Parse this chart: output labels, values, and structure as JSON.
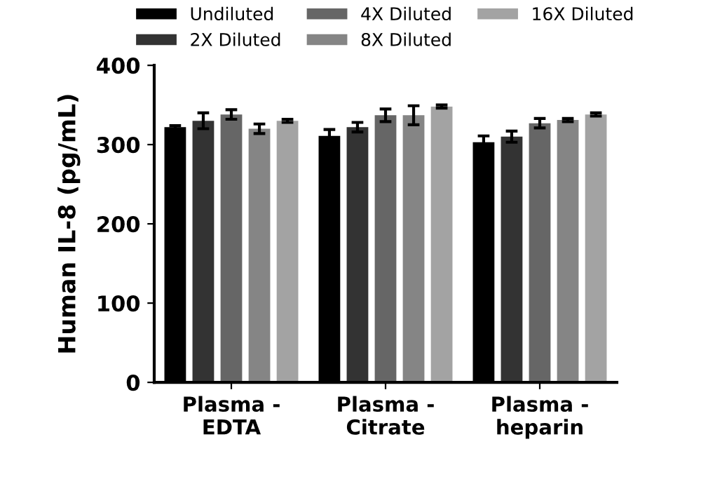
{
  "chart_data": {
    "type": "bar",
    "ylabel": "Human IL-8 (pg/mL)",
    "categories": [
      "Plasma -\nEDTA",
      "Plasma -\nCitrate",
      "Plasma -\nheparin"
    ],
    "series": [
      {
        "name": "Undiluted",
        "color": "#000000",
        "values": [
          322,
          311,
          303
        ],
        "errors": [
          2,
          8,
          8
        ]
      },
      {
        "name": "2X Diluted",
        "color": "#333333",
        "values": [
          330,
          322,
          310
        ],
        "errors": [
          10,
          6,
          7
        ]
      },
      {
        "name": "4X Diluted",
        "color": "#666666",
        "values": [
          338,
          337,
          327
        ],
        "errors": [
          6,
          8,
          6
        ]
      },
      {
        "name": "8X Diluted",
        "color": "#858585",
        "values": [
          320,
          337,
          331
        ],
        "errors": [
          6,
          12,
          2
        ]
      },
      {
        "name": "16X Diluted",
        "color": "#a3a3a3",
        "values": [
          330,
          348,
          338
        ],
        "errors": [
          2,
          2,
          2
        ]
      }
    ],
    "ylim": [
      0,
      400
    ],
    "yticks": [
      0,
      100,
      200,
      300,
      400
    ],
    "grid": false,
    "legend": "top"
  }
}
